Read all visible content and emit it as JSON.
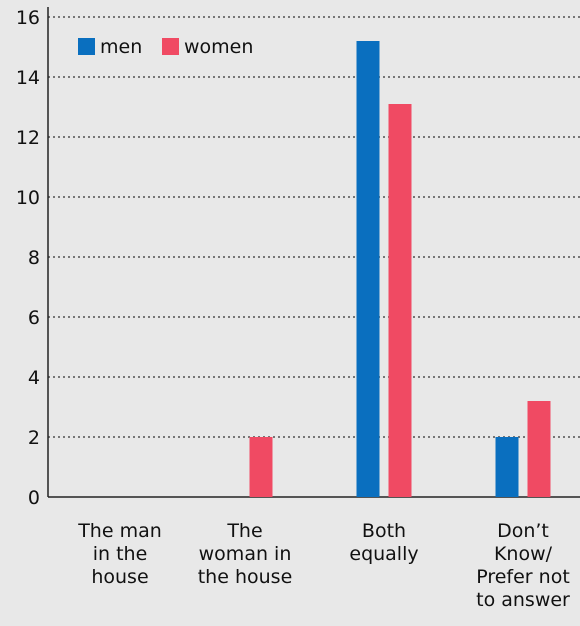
{
  "chart_data": {
    "type": "bar",
    "title": "",
    "xlabel": "",
    "ylabel": "",
    "ylim": [
      0,
      16
    ],
    "yticks": [
      0,
      2,
      4,
      6,
      8,
      10,
      12,
      14,
      16
    ],
    "grid": true,
    "legend_position": "top-left",
    "categories": [
      [
        "The man",
        "in the",
        "house"
      ],
      [
        "The",
        "woman in",
        "the house"
      ],
      [
        "Both",
        "equally"
      ],
      [
        "Don’t",
        "Know/",
        "Prefer not",
        "to answer"
      ]
    ],
    "series": [
      {
        "name": "men",
        "color": "#0a6fbf",
        "values": [
          0,
          0,
          15.2,
          2
        ]
      },
      {
        "name": "women",
        "color": "#f04a63",
        "values": [
          0,
          2,
          13.1,
          3.2
        ]
      }
    ]
  }
}
